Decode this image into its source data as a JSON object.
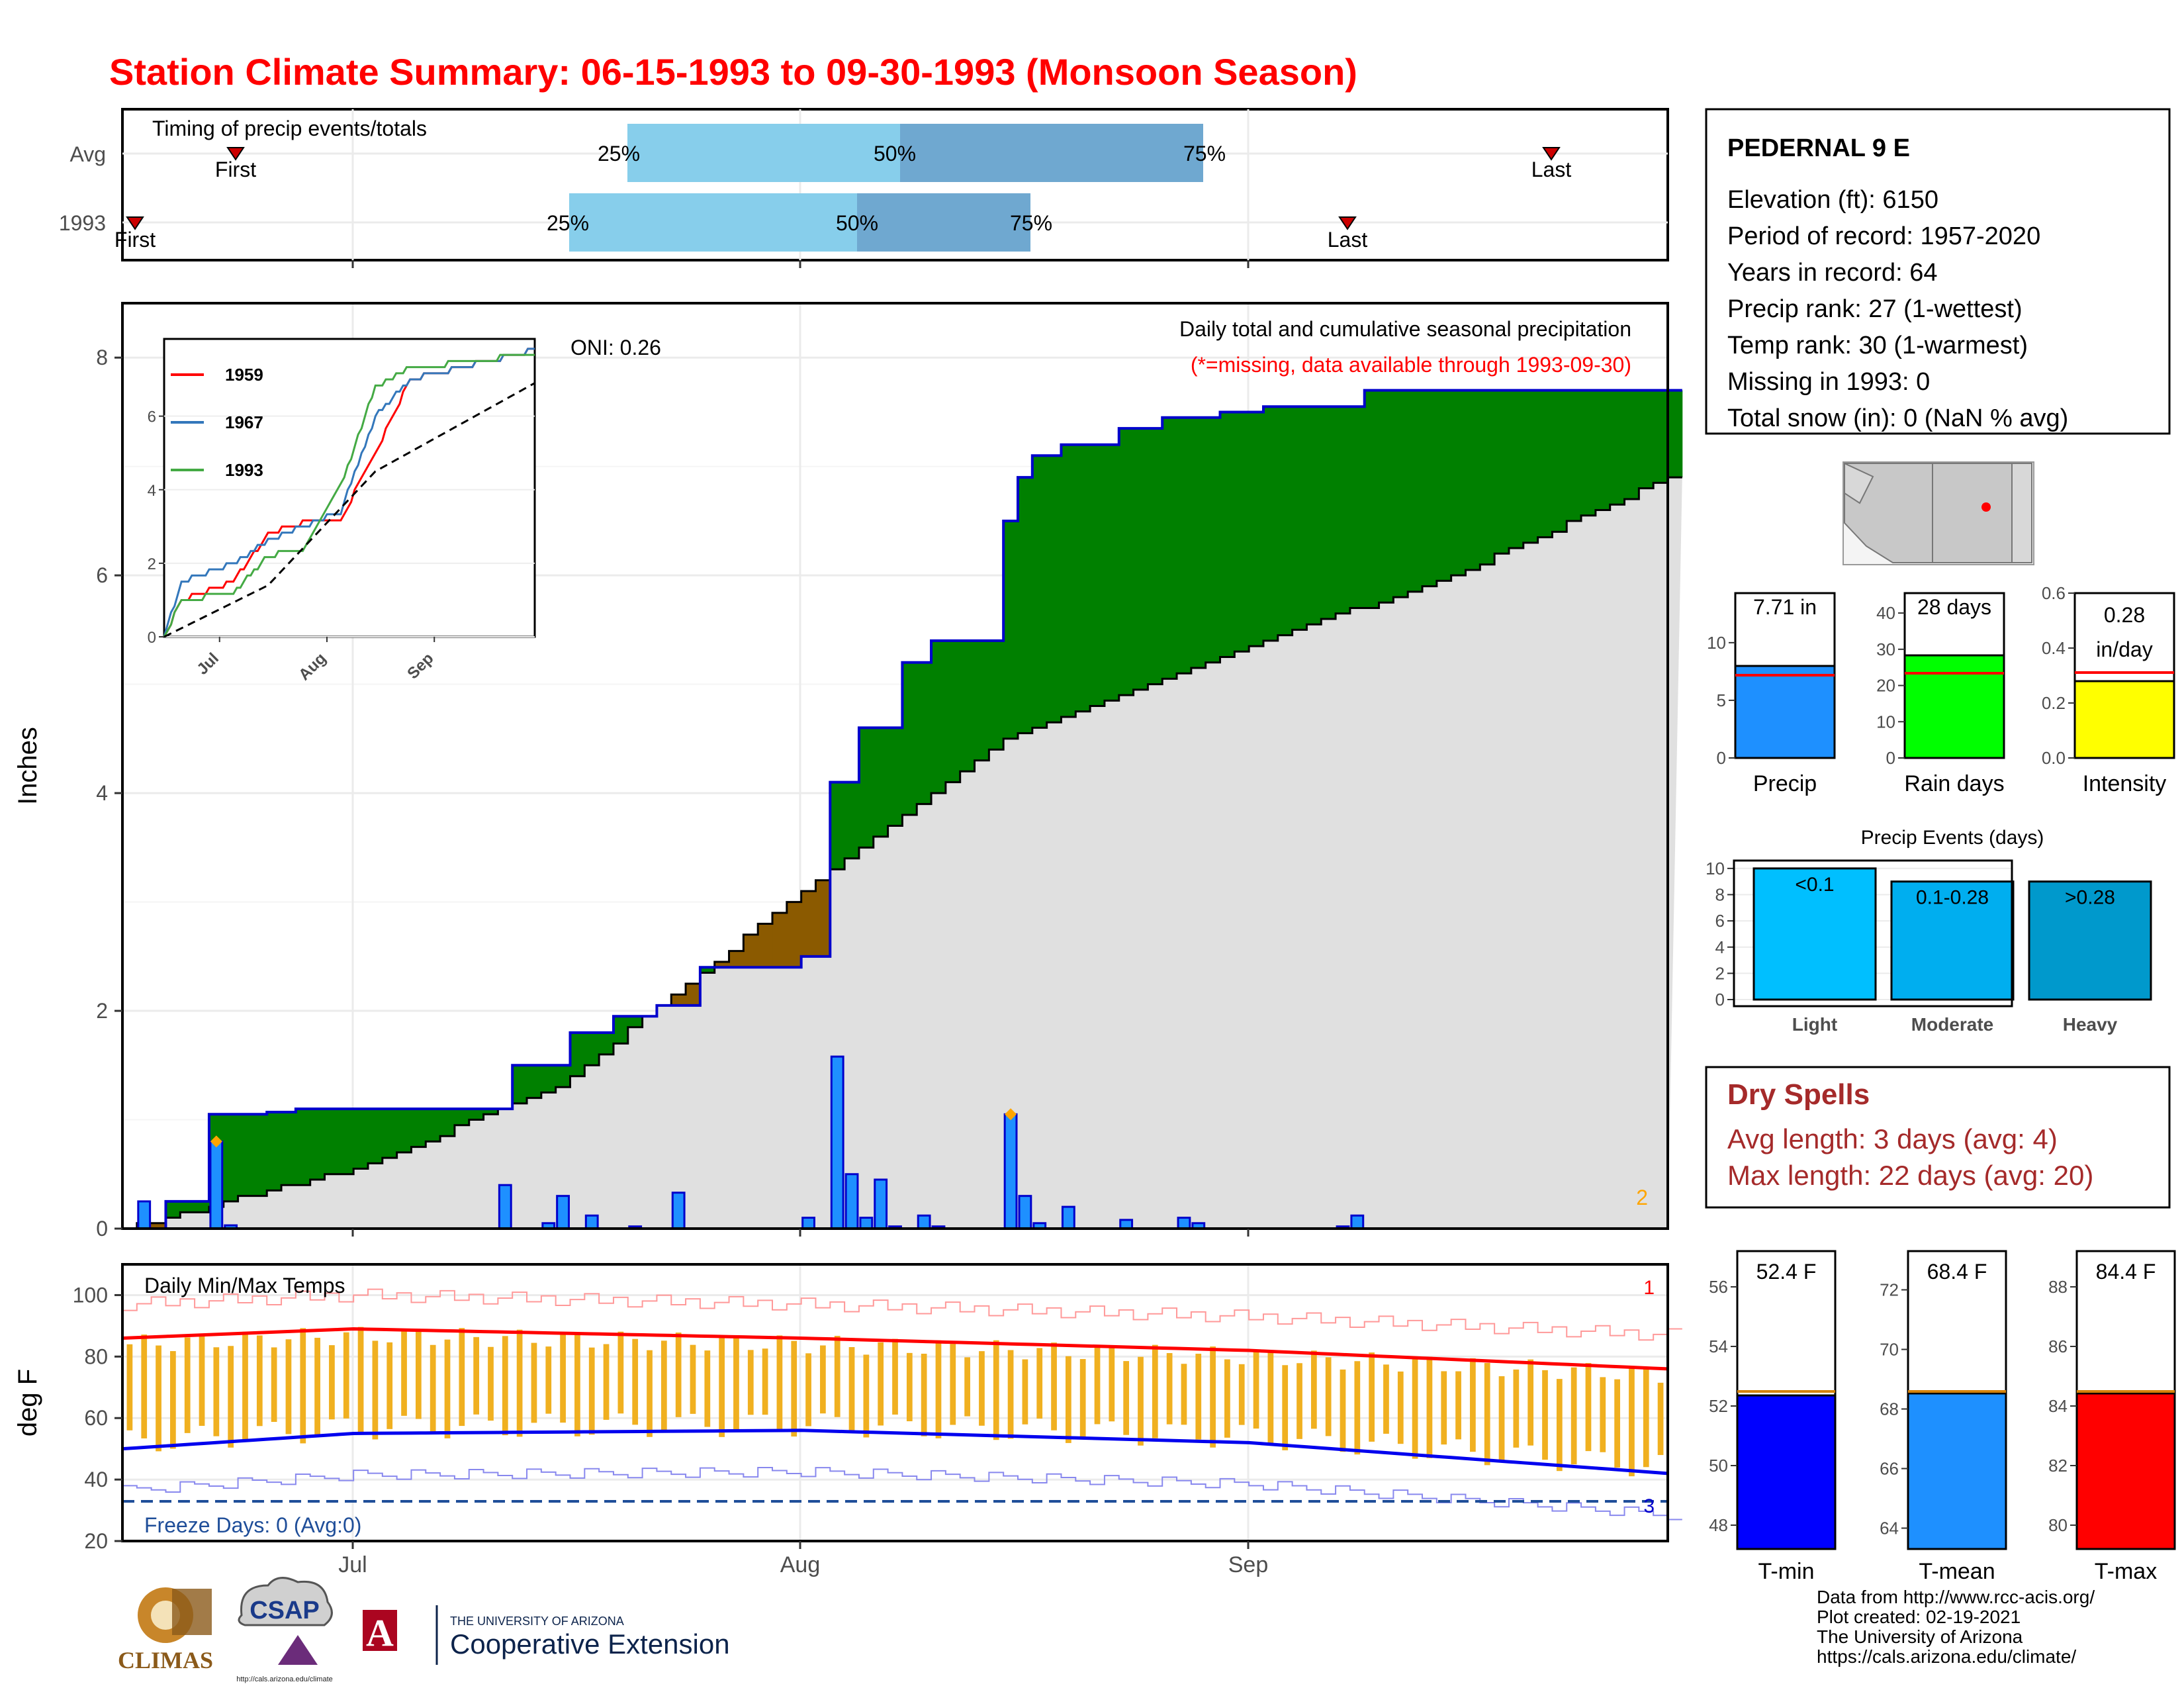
{
  "title": "Station Climate Summary: 06-15-1993 to 09-30-1993 (Monsoon Season)",
  "timing": {
    "label": "Timing of precip events/totals",
    "rows": [
      "Avg",
      "1993"
    ],
    "avg": {
      "first": "First",
      "last": "Last",
      "q25": "25%",
      "q50": "50%",
      "q75": "75%"
    },
    "y1993": {
      "first": "First",
      "last": "Last",
      "q25": "25%",
      "q50": "50%",
      "q75": "75%"
    }
  },
  "station": {
    "name": "PEDERNAL 9 E",
    "lines": [
      "Elevation (ft): 6150",
      "Period of record: 1957-2020",
      "Years in record: 64",
      "Precip rank: 27 (1-wettest)",
      "Temp rank: 30 (1-warmest)",
      "Missing in 1993: 0",
      "Total snow (in): 0 (NaN % avg)"
    ]
  },
  "main": {
    "ylabel": "Inches",
    "oni": "ONI: 0.26",
    "desc": "Daily total and cumulative seasonal precipitation",
    "missing_note": "(*=missing, data available through 1993-09-30)",
    "corner_num": "2",
    "yticks": [
      "0",
      "2",
      "4",
      "6",
      "8"
    ]
  },
  "inset": {
    "legend": [
      "1959",
      "1967",
      "1993"
    ],
    "yticks": [
      "0",
      "2",
      "4",
      "6"
    ],
    "xticks": [
      "Jul",
      "Aug",
      "Sep"
    ]
  },
  "temps": {
    "label": "Daily Min/Max Temps",
    "ylabel": "deg F",
    "freeze": "Freeze Days: 0 (Avg:0)",
    "corner_top": "1",
    "corner_bottom": "3",
    "yticks": [
      "20",
      "40",
      "60",
      "80",
      "100"
    ]
  },
  "xaxis": {
    "ticks": [
      "Jul",
      "Aug",
      "Sep"
    ]
  },
  "bars_top": {
    "precip": {
      "value_label": "7.71 in",
      "axis_label": "Precip",
      "yticks": [
        "0",
        "5",
        "10"
      ]
    },
    "raindays": {
      "value_label": "28 days",
      "axis_label": "Rain days",
      "yticks": [
        "0",
        "10",
        "20",
        "30",
        "40"
      ]
    },
    "intensity": {
      "value_label": "0.28",
      "value_unit": "in/day",
      "axis_label": "Intensity",
      "yticks": [
        "0.0",
        "0.2",
        "0.4",
        "0.6"
      ]
    }
  },
  "events": {
    "title": "Precip Events (days)",
    "yticks": [
      "0",
      "2",
      "4",
      "6",
      "8",
      "10"
    ],
    "bars": [
      {
        "label": "<0.1",
        "axis": "Light"
      },
      {
        "label": "0.1-0.28",
        "axis": "Moderate"
      },
      {
        "label": ">0.28",
        "axis": "Heavy"
      }
    ]
  },
  "dry": {
    "title": "Dry Spells",
    "avg": "Avg length: 3 days (avg: 4)",
    "max": "Max length: 22 days (avg: 20)"
  },
  "temp_bars": {
    "tmin": {
      "value_label": "52.4 F",
      "axis_label": "T-min",
      "yticks": [
        "48",
        "50",
        "52",
        "54",
        "56"
      ]
    },
    "tmean": {
      "value_label": "68.4 F",
      "axis_label": "T-mean",
      "yticks": [
        "64",
        "66",
        "68",
        "70",
        "72"
      ]
    },
    "tmax": {
      "value_label": "84.4 F",
      "axis_label": "T-max",
      "yticks": [
        "80",
        "82",
        "84",
        "86",
        "88"
      ]
    }
  },
  "credits": [
    "Data from http://www.rcc-acis.org/",
    "Plot created: 02-19-2021",
    "The University of Arizona",
    "https://cals.arizona.edu/climate/"
  ],
  "logos": {
    "climas": "CLIMAS",
    "csap": "CSAP",
    "csap_url": "http://cals.arizona.edu/climate",
    "ua_line1": "THE UNIVERSITY OF ARIZONA",
    "ua_line2": "Cooperative Extension",
    "ua_letter": "A"
  },
  "colors": {
    "title": "#ff0000",
    "above_avg": "#008000",
    "below_avg": "#8b5a00",
    "avg_fill": "#e0e0e0",
    "bar_blue": "#1e90ff",
    "rain_green": "#00ff00",
    "intensity_yellow": "#ffff00",
    "tmax_red": "#ff0000",
    "tmin_blue": "#0000ff",
    "tbar_orange": "#f0b020",
    "dry": "#a52a2a",
    "light": "#00bfff",
    "moderate": "#00aeef",
    "heavy": "#0099cc"
  },
  "chart_data": [
    {
      "type": "line",
      "title": "Daily total and cumulative seasonal precipitation",
      "ylabel": "Inches",
      "ylim": [
        0,
        8.5
      ],
      "x_range": [
        "1993-06-15",
        "1993-09-30"
      ],
      "grid": true,
      "series": [
        {
          "name": "1993",
          "x": [
            "1993-06-15",
            "1993-06-18",
            "1993-06-19",
            "1993-06-21",
            "1993-06-21",
            "1993-06-24",
            "1993-06-25",
            "1993-06-27",
            "1993-07-10",
            "1993-07-12",
            "1993-07-13",
            "1993-07-16",
            "1993-07-19",
            "1993-07-22",
            "1993-07-25",
            "1993-08-01",
            "1993-08-02",
            "1993-08-03",
            "1993-08-05",
            "1993-08-08",
            "1993-08-10",
            "1993-08-15",
            "1993-08-15",
            "1993-08-16",
            "1993-08-17",
            "1993-08-19",
            "1993-08-23",
            "1993-08-26",
            "1993-08-30",
            "1993-09-02",
            "1993-09-08",
            "1993-09-09",
            "1993-09-30"
          ],
          "y": [
            0,
            0.25,
            0.25,
            0.25,
            1.05,
            1.05,
            1.07,
            1.1,
            1.1,
            1.5,
            1.5,
            1.8,
            1.95,
            2.05,
            2.4,
            2.5,
            2.5,
            4.1,
            4.6,
            5.2,
            5.4,
            5.4,
            6.5,
            6.9,
            7.1,
            7.2,
            7.35,
            7.45,
            7.5,
            7.55,
            7.55,
            7.7,
            7.7
          ]
        },
        {
          "name": "Avg",
          "x": [
            "1993-06-15",
            "1993-07-01",
            "1993-07-15",
            "1993-08-01",
            "1993-08-15",
            "1993-09-01",
            "1993-09-15",
            "1993-09-30"
          ],
          "y": [
            0,
            0.55,
            1.3,
            3.1,
            4.5,
            5.35,
            6.0,
            6.9
          ]
        }
      ],
      "daily_bars": {
        "x": [
          "1993-06-16",
          "1993-06-21",
          "1993-06-22",
          "1993-07-11",
          "1993-07-14",
          "1993-07-15",
          "1993-07-17",
          "1993-07-20",
          "1993-07-23",
          "1993-08-01",
          "1993-08-03",
          "1993-08-04",
          "1993-08-05",
          "1993-08-06",
          "1993-08-07",
          "1993-08-09",
          "1993-08-10",
          "1993-08-15",
          "1993-08-16",
          "1993-08-17",
          "1993-08-19",
          "1993-08-23",
          "1993-08-27",
          "1993-08-28",
          "1993-09-07",
          "1993-09-08"
        ],
        "y": [
          0.25,
          0.8,
          0.03,
          0.4,
          0.05,
          0.3,
          0.12,
          0.02,
          0.33,
          0.1,
          1.58,
          0.5,
          0.1,
          0.45,
          0.02,
          0.12,
          0.02,
          1.05,
          0.3,
          0.05,
          0.2,
          0.08,
          0.1,
          0.05,
          0.02,
          0.12
        ]
      },
      "inset": {
        "type": "line",
        "yticks": [
          0,
          2,
          4,
          6
        ],
        "series": [
          {
            "name": "1959",
            "x": [
              "1993-06-15",
              "1993-06-20",
              "1993-07-05",
              "1993-07-15",
              "1993-07-25",
              "1993-08-05",
              "1993-08-15",
              "1993-08-25",
              "1993-09-30"
            ],
            "y": [
              0,
              1.0,
              1.5,
              2.8,
              3.1,
              3.2,
              5.0,
              7.0,
              7.8
            ]
          },
          {
            "name": "1967",
            "x": [
              "1993-06-15",
              "1993-06-20",
              "1993-07-05",
              "1993-07-15",
              "1993-07-25",
              "1993-08-05",
              "1993-08-15",
              "1993-08-25",
              "1993-09-30"
            ],
            "y": [
              0,
              1.5,
              2.0,
              2.6,
              3.0,
              3.4,
              6.0,
              7.0,
              7.8
            ]
          },
          {
            "name": "1993",
            "x": [
              "1993-06-15",
              "1993-06-20",
              "1993-07-05",
              "1993-07-15",
              "1993-07-25",
              "1993-08-05",
              "1993-08-15",
              "1993-08-25",
              "1993-09-30"
            ],
            "y": [
              0,
              1.0,
              1.2,
              2.2,
              2.4,
              4.1,
              6.8,
              7.3,
              7.7
            ]
          },
          {
            "name": "Avg",
            "x": [
              "1993-06-15",
              "1993-07-15",
              "1993-08-15",
              "1993-09-30"
            ],
            "y": [
              0,
              1.4,
              4.5,
              6.9
            ]
          }
        ]
      }
    },
    {
      "type": "bar",
      "title": "Daily Min/Max Temps",
      "ylabel": "deg F",
      "ylim": [
        20,
        110
      ],
      "series": [
        {
          "name": "Tmax avg",
          "x": [
            "1993-06-15",
            "1993-07-01",
            "1993-08-01",
            "1993-09-01",
            "1993-09-30"
          ],
          "y": [
            86,
            89,
            86,
            82,
            76
          ]
        },
        {
          "name": "Tmin avg",
          "x": [
            "1993-06-15",
            "1993-07-01",
            "1993-08-01",
            "1993-09-01",
            "1993-09-30"
          ],
          "y": [
            50,
            55,
            56,
            52,
            42
          ]
        }
      ]
    },
    {
      "type": "bar",
      "categories": [
        "Precip",
        "Rain days",
        "Intensity"
      ],
      "values": [
        7.71,
        28,
        0.28
      ]
    },
    {
      "type": "bar",
      "title": "Precip Events (days)",
      "categories": [
        "Light",
        "Moderate",
        "Heavy"
      ],
      "values": [
        10,
        9,
        9
      ]
    },
    {
      "type": "bar",
      "categories": [
        "T-min",
        "T-mean",
        "T-max"
      ],
      "values": [
        52.4,
        68.4,
        84.4
      ]
    }
  ]
}
